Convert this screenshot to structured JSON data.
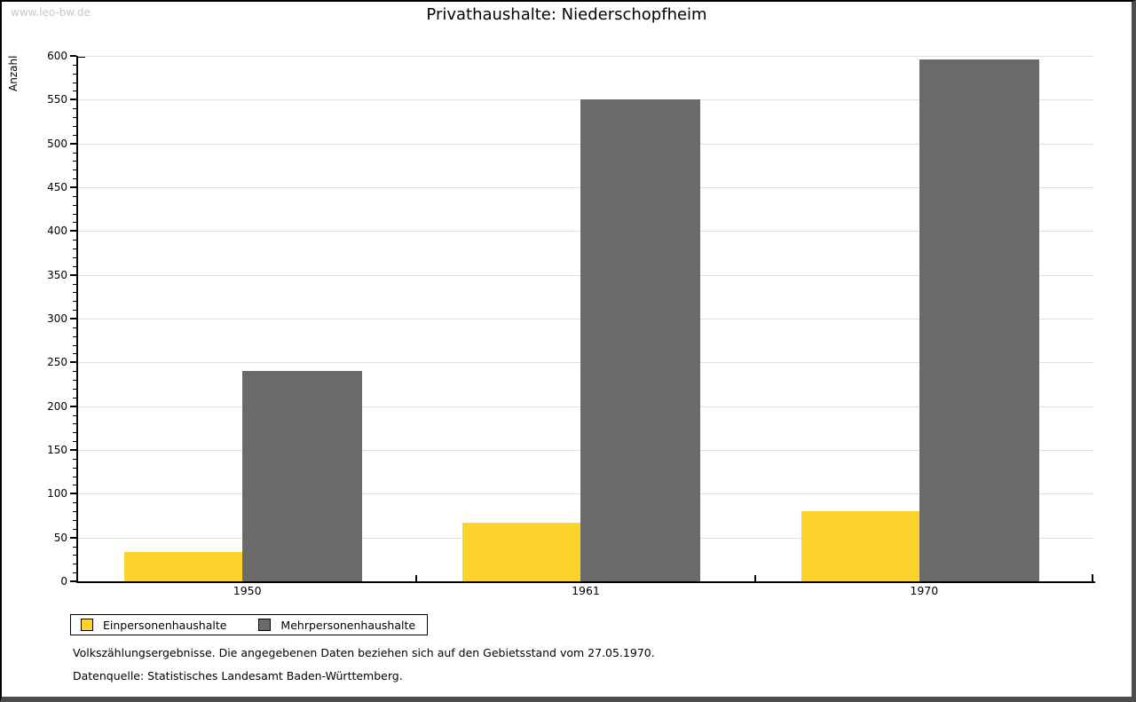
{
  "watermark": "www.leo-bw.de",
  "title": "Privathaushalte: Niederschopfheim",
  "chart_data": {
    "type": "bar",
    "title": "Privathaushalte: Niederschopfheim",
    "categories": [
      "1950",
      "1961",
      "1970"
    ],
    "series": [
      {
        "name": "Einpersonenhaushalte",
        "color": "#fcd22c",
        "values": [
          33,
          67,
          80
        ]
      },
      {
        "name": "Mehrpersonenhaushalte",
        "color": "#6a6a6a",
        "values": [
          240,
          550,
          596
        ]
      }
    ],
    "xlabel": "",
    "ylabel": "Anzahl",
    "ylim": [
      0,
      600
    ],
    "ytick_major": 50,
    "ytick_minor": 10,
    "grid": true,
    "gridline_color": "#e0e0e0",
    "legend_position": "bottom-left"
  },
  "legend": {
    "items": [
      {
        "label": "Einpersonenhaushalte",
        "color": "#fcd22c"
      },
      {
        "label": "Mehrpersonenhaushalte",
        "color": "#6a6a6a"
      }
    ]
  },
  "footnotes": [
    "Volkszählungsergebnisse. Die angegebenen Daten beziehen sich auf den Gebietsstand vom 27.05.1970.",
    "Datenquelle: Statistisches Landesamt Baden-Württemberg."
  ]
}
